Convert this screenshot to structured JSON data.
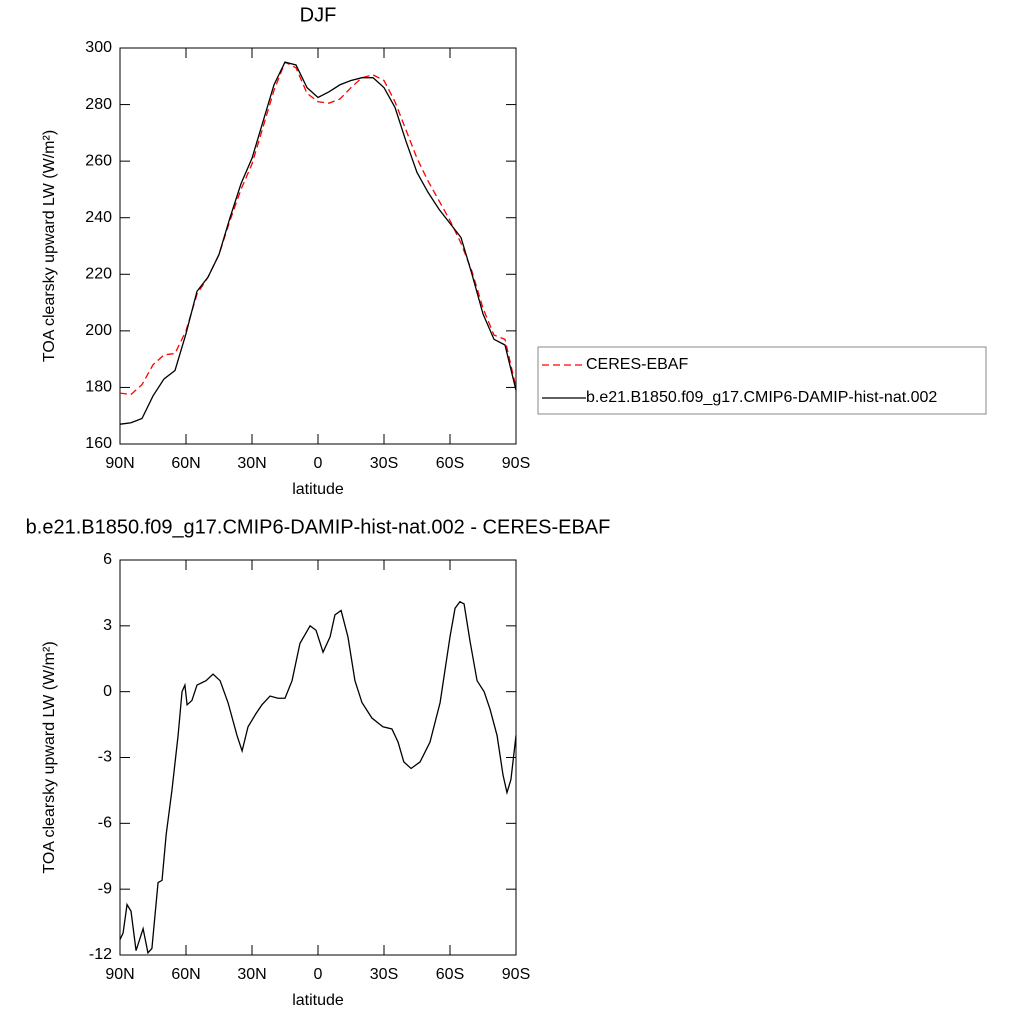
{
  "chart_data": [
    {
      "type": "line",
      "title": "DJF",
      "xlabel": "latitude",
      "ylabel": "TOA clearsky upward LW (W/m²)",
      "x": [
        90,
        85,
        80,
        75,
        70,
        65,
        60,
        55,
        50,
        45,
        40,
        35,
        30,
        25,
        20,
        15,
        10,
        5,
        0,
        -5,
        -10,
        -15,
        -20,
        -25,
        -30,
        -35,
        -40,
        -45,
        -50,
        -55,
        -60,
        -65,
        -70,
        -75,
        -80,
        -85,
        -90
      ],
      "series": [
        {
          "name": "CERES-EBAF",
          "color": "#ff0000",
          "dashed": true,
          "values": [
            178,
            177.5,
            181,
            188,
            191.5,
            192,
            200,
            213,
            219,
            227,
            239,
            250,
            259,
            272,
            285,
            295,
            293,
            284,
            281,
            280.5,
            282,
            286,
            289.5,
            290.5,
            288.5,
            281,
            271,
            261,
            253,
            246,
            239,
            231,
            221,
            208,
            198.5,
            197,
            180
          ]
        },
        {
          "name": "b.e21.B1850.f09_g17.CMIP6-DAMIP-hist-nat.002",
          "color": "#000000",
          "dashed": false,
          "values": [
            167,
            167.5,
            169,
            177,
            183,
            186,
            199,
            214,
            219,
            227,
            240,
            252,
            261,
            274,
            287,
            295,
            294,
            286,
            282.5,
            284.5,
            287,
            288.5,
            289.5,
            289.5,
            286,
            279,
            267,
            256,
            249,
            243,
            238,
            233,
            220,
            206,
            197,
            195,
            179
          ]
        }
      ],
      "xlim": [
        90,
        -90
      ],
      "xticks": [
        {
          "value": 90,
          "label": "90N"
        },
        {
          "value": 60,
          "label": "60N"
        },
        {
          "value": 30,
          "label": "30N"
        },
        0,
        {
          "value": -30,
          "label": "30S"
        },
        {
          "value": -60,
          "label": "60S"
        },
        {
          "value": -90,
          "label": "90S"
        }
      ],
      "ylim": [
        160,
        300
      ],
      "yticks": [
        160,
        180,
        200,
        220,
        240,
        260,
        280,
        300
      ],
      "legend": "outside-right"
    },
    {
      "type": "line",
      "title": "b.e21.B1850.f09_g17.CMIP6-DAMIP-hist-nat.002 - CERES-EBAF",
      "xlabel": "latitude",
      "ylabel": "TOA clearsky upward LW (W/m²)",
      "x": [
        90,
        88.6,
        86.8,
        85,
        82.7,
        79.5,
        77.3,
        75.5,
        72.7,
        70.9,
        69,
        66.4,
        63.6,
        61.8,
        60.5,
        59.5,
        57.3,
        55,
        50.9,
        47.7,
        44.5,
        40.9,
        36.8,
        34.5,
        31.8,
        28.2,
        25.5,
        21.8,
        18.2,
        15,
        11.8,
        8.2,
        3.6,
        0.9,
        -2.3,
        -5.5,
        -7.7,
        -10.5,
        -13.6,
        -16.8,
        -20,
        -24.5,
        -29.5,
        -33.6,
        -36.4,
        -39,
        -42.3,
        -46.4,
        -50.9,
        -55.5,
        -60,
        -62.3,
        -64.5,
        -66.4,
        -69.1,
        -72.3,
        -75.5,
        -78.2,
        -81.4,
        -84.1,
        -85.9,
        -87.7,
        -90
      ],
      "values": [
        -11.3,
        -11,
        -9.7,
        -10,
        -11.8,
        -10.8,
        -11.9,
        -11.7,
        -8.7,
        -8.6,
        -6.5,
        -4.5,
        -2,
        0,
        0.3,
        -0.6,
        -0.4,
        0.3,
        0.5,
        0.8,
        0.5,
        -0.5,
        -2,
        -2.7,
        -1.6,
        -1,
        -0.6,
        -0.2,
        -0.3,
        -0.3,
        0.5,
        2.2,
        3,
        2.8,
        1.8,
        2.5,
        3.5,
        3.7,
        2.5,
        0.5,
        -0.5,
        -1.2,
        -1.6,
        -1.7,
        -2.3,
        -3.2,
        -3.5,
        -3.2,
        -2.3,
        -0.5,
        2.5,
        3.8,
        4.1,
        4,
        2.3,
        0.5,
        0,
        -0.8,
        -2,
        -3.8,
        -4.6,
        -4,
        -2
      ],
      "color": "#000000",
      "xlim": [
        90,
        -90
      ],
      "xticks": [
        {
          "value": 90,
          "label": "90N"
        },
        {
          "value": 60,
          "label": "60N"
        },
        {
          "value": 30,
          "label": "30N"
        },
        0,
        {
          "value": -30,
          "label": "30S"
        },
        {
          "value": -60,
          "label": "60S"
        },
        {
          "value": -90,
          "label": "90S"
        }
      ],
      "ylim": [
        -12,
        6
      ],
      "yticks": [
        -12,
        -9,
        -6,
        -3,
        0,
        3,
        6
      ]
    }
  ]
}
